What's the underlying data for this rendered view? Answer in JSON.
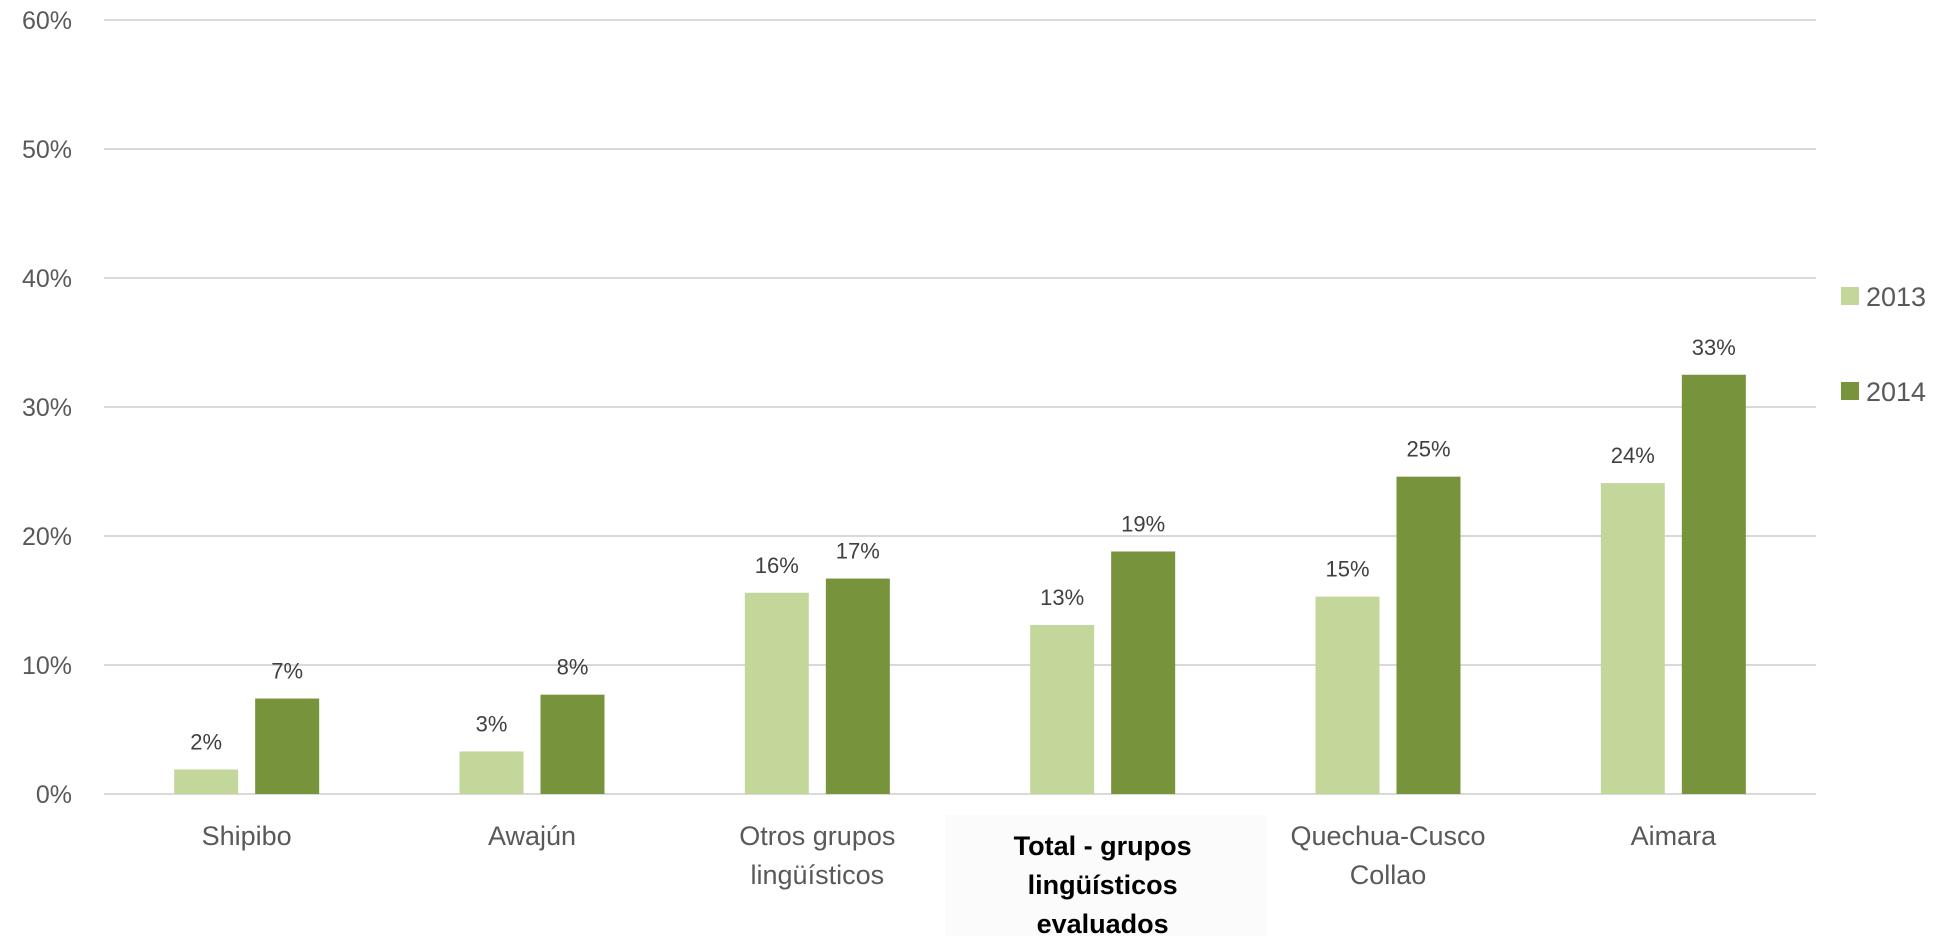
{
  "chart_data": {
    "type": "bar",
    "categories": [
      [
        "Shipibo"
      ],
      [
        "Awajún"
      ],
      [
        "Otros grupos",
        "lingüísticos"
      ],
      [
        "Total - grupos",
        "lingüísticos",
        "evaluados"
      ],
      [
        "Quechua-Cusco",
        "Collao"
      ],
      [
        "Aimara"
      ]
    ],
    "highlight_category_index": 3,
    "series": [
      {
        "name": "2013",
        "color": "#c4d79b",
        "values": [
          0.019,
          0.033,
          0.156,
          0.131,
          0.153,
          0.241
        ],
        "labels": [
          "2%",
          "3%",
          "16%",
          "13%",
          "15%",
          "24%"
        ]
      },
      {
        "name": "2014",
        "color": "#77933c",
        "values": [
          0.074,
          0.077,
          0.167,
          0.188,
          0.246,
          0.325
        ],
        "labels": [
          "7%",
          "8%",
          "17%",
          "19%",
          "25%",
          "33%"
        ]
      }
    ],
    "ylim": [
      0,
      0.6
    ],
    "yticks": [
      0,
      0.1,
      0.2,
      0.3,
      0.4,
      0.5,
      0.6
    ],
    "ytick_labels": [
      "0%",
      "10%",
      "20%",
      "30%",
      "40%",
      "50%",
      "60%"
    ],
    "grid": true,
    "legend_position": "right",
    "title": "",
    "xlabel": "",
    "ylabel": ""
  }
}
